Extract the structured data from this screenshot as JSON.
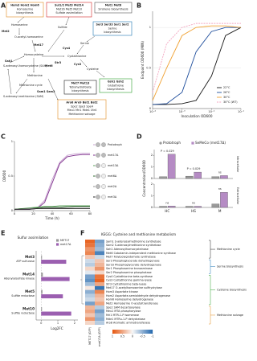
{
  "panel_labels": [
    "A",
    "B",
    "C",
    "D",
    "E",
    "F"
  ],
  "diagram": {
    "boxes": [
      {
        "lines": [
          "Hom3 Hom2 Hom6",
          "Homoserine",
          "biosynthesis"
        ],
        "color": "#e08a1e"
      },
      {
        "lines": [
          "Sul1/2 Met3 Met14",
          "Met16 Met5 Met10",
          "Sulfate assimilation"
        ],
        "color": "#d62728"
      },
      {
        "lines": [
          "Met1 Met8",
          "Sirohene biosynthesis"
        ],
        "color": "#555555"
      },
      {
        "lines": [
          "Ser3 Ser33 Ser1 Ser2",
          "Serine",
          "biosynthesis"
        ],
        "color": "#1f77b4"
      },
      {
        "lines": [
          "Gsh1 Gsh2",
          "Glutathione",
          "biosynthesis"
        ],
        "color": "#2ca02c"
      },
      {
        "lines": [
          "Met7 Met13",
          "Tetrahydrofolate",
          "biosynthesis"
        ],
        "color": "#222222"
      },
      {
        "lines": [
          "Aro8 Aro9 Bat1 Bat2",
          "Spe2 Spe3 Spe4",
          "Meu1 Mri1 Mde1 Utr4",
          "Methionine salvage"
        ],
        "color": "#e08a1e"
      }
    ],
    "labels": [
      "Homoserine",
      "O-acetyl-homoserine",
      "Met2",
      "Met17",
      "Sulfide",
      "Homocysteine",
      "Cystathionine",
      "Serine",
      "Cysteine",
      "Methionine",
      "Met6",
      "Methionine cycle",
      "S-adenosyl-methionine (SAM)",
      "S-adenosyl-homocysteine (SAH)",
      "Sah1",
      "Sam1 Sam2",
      "Cys4",
      "Cys3",
      "Str3"
    ]
  },
  "chart_data": [
    {
      "type": "line",
      "ylabel": "Endpoint OD600 (MIN)",
      "xlabel": "Inoculation OD600",
      "xscale": "log",
      "x": [
        0.0001,
        0.0003,
        0.001,
        0.003,
        0.01,
        0.03,
        0.1
      ],
      "xlim": [
        0.0001,
        0.1
      ],
      "xticks": [
        {
          "value": 0.0001,
          "label": "10⁻⁴"
        },
        {
          "value": 0.001,
          "label": "10⁻³"
        },
        {
          "value": 0.01,
          "label": "10⁻²"
        },
        {
          "value": 0.1,
          "label": "10⁻¹"
        }
      ],
      "ylim": [
        0,
        1.2
      ],
      "yticks": [
        0,
        0.5,
        1
      ],
      "grid": true,
      "legend": "lower right",
      "series": [
        {
          "name": "22°C",
          "color": "#1a1a1a",
          "values": [
            0.05,
            0.05,
            0.06,
            0.1,
            0.4,
            0.9,
            1.0
          ]
        },
        {
          "name": "26°C",
          "color": "#1f4e9c",
          "values": [
            0.05,
            0.06,
            0.2,
            0.7,
            0.95,
            1.0,
            1.0
          ]
        },
        {
          "name": "30°C",
          "color": "#f0a030",
          "values": [
            0.1,
            0.5,
            0.9,
            1.0,
            1.02,
            1.02,
            1.0
          ]
        },
        {
          "name": "30°C (WT)",
          "color": "#f4a6c0",
          "dashed": true,
          "values": [
            0.2,
            0.8,
            1.0,
            1.05,
            1.05,
            1.05,
            1.05
          ]
        }
      ]
    },
    {
      "type": "line",
      "ylabel": "OD600",
      "xlabel": "Time (h)",
      "x": [
        0,
        8,
        16,
        24,
        32,
        40,
        48,
        56,
        64,
        72,
        80
      ],
      "xlim": [
        0,
        80
      ],
      "xticks": [
        0,
        20,
        40,
        60,
        80
      ],
      "ylim": [
        0,
        1
      ],
      "yticks": [
        0,
        0.5,
        1
      ],
      "grid": false,
      "legend": "right",
      "series": [
        {
          "name": "Prototroph",
          "color": "#c7a0cf",
          "values": [
            0.02,
            0.02,
            0.02,
            0.04,
            0.15,
            0.45,
            0.7,
            0.8,
            0.82,
            0.83,
            0.83
          ]
        },
        {
          "name": "met17Δ",
          "color": "#7d2e8c",
          "values": [
            0.02,
            0.02,
            0.02,
            0.03,
            0.12,
            0.4,
            0.68,
            0.78,
            0.8,
            0.81,
            0.81
          ]
        },
        {
          "name": "met13Δ",
          "color": "#5aa05a",
          "values": [
            0.02,
            0.03,
            0.04,
            0.05,
            0.06,
            0.06,
            0.07,
            0.07,
            0.07,
            0.07,
            0.07
          ]
        },
        {
          "name": "met6Δ",
          "color": "#2e6b2e",
          "values": [
            0.02,
            0.03,
            0.03,
            0.04,
            0.05,
            0.05,
            0.05,
            0.06,
            0.06,
            0.06,
            0.06
          ]
        },
        {
          "name": "met2Δ",
          "color": "#8c8c8c",
          "values": [
            0.02,
            0.02,
            0.03,
            0.03,
            0.04,
            0.04,
            0.04,
            0.04,
            0.05,
            0.05,
            0.05
          ]
        },
        {
          "name": "met3Δ",
          "color": "#222222",
          "values": [
            0.02,
            0.02,
            0.02,
            0.03,
            0.03,
            0.03,
            0.03,
            0.03,
            0.03,
            0.03,
            0.03
          ]
        }
      ]
    },
    {
      "type": "bar",
      "ylabel": "Concentration/OD600",
      "facet": "Intracellular",
      "ylim": [
        0,
        2.5
      ],
      "yticks": [
        0,
        1,
        2
      ],
      "annotations": [
        "P = 0.029",
        "P = 0.029",
        "ns"
      ],
      "series": [
        {
          "name": "Prototroph",
          "color": "#9a9a9a",
          "values": [
            0.15,
            0.2,
            0.15
          ]
        },
        {
          "name": "SeMeCo (met17Δ)",
          "color": "#b58bc4",
          "values": [
            2.1,
            0.55,
            0.25
          ]
        }
      ]
    },
    {
      "type": "bar",
      "facet": "Extracellular",
      "categories": [
        "HC",
        "HS",
        "M"
      ],
      "ylim": [
        0,
        2
      ],
      "yticks": [
        0,
        1,
        2
      ],
      "annotations": [
        "ns",
        "ns",
        "ns"
      ],
      "series": [
        {
          "color": "#9a9a9a",
          "values": [
            0.1,
            0.1,
            0.3
          ]
        },
        {
          "color": "#b58bc4",
          "values": [
            0.12,
            0.1,
            1.3
          ]
        }
      ]
    },
    {
      "type": "bar",
      "horizontal": true,
      "title": "Sulfur assimilation",
      "xlabel": "Log2FC",
      "categories": [
        "Met3",
        "Met14",
        "Met5",
        "Met10"
      ],
      "subtitles": [
        "ATP sulfurase",
        "Adenylylsulfate kinase",
        "Sulfite reductase",
        "Sulfite reductase"
      ],
      "xlim": [
        -0.3,
        2.2
      ],
      "xticks": [
        0,
        1,
        2
      ],
      "series": [
        {
          "name": "MET17",
          "color": "#9a9a9a",
          "values": [
            0.05,
            0.1,
            0.08,
            0.05
          ]
        },
        {
          "name": "met17Δ",
          "color": "#9b5fb0",
          "values": [
            1.5,
            1.7,
            1.3,
            1.8
          ]
        }
      ]
    },
    {
      "type": "heatmap",
      "title": "KEGG: Cysteine and methionine metabolism",
      "columns": [
        "MET17 (GFP)",
        "met17Δ (GFP)"
      ],
      "rows": [
        "Sam1 S-adenosylmethionine synthetase",
        "Sam2 S-adenosylmethionine synthetase",
        "Sah1 Adenosylhomocysteinase",
        "Met6 Cobalamin-independent methionine synthase",
        "Met7 Folylpolyglutamate synthetase",
        "Ser3 Phosphoglycerate dehydrogenase",
        "Ser33 Phosphoglycerate dehydrogenase",
        "Ser1 Phosphoserine transaminase",
        "Ser2 Phosphoserine phosphatase",
        "Cys4 Cystathionine beta-synthase",
        "Cys3 Cystathionine gamma-lyase",
        "Str3 Cystathionine beta-lyase",
        "Met17 O-acetylhomoserine sulfhydrylase",
        "Hom3 Aspartate kinase",
        "Hom2 Aspartate-semialdehyde dehydrogenase",
        "Hom6 Homoserine dehydrogenase",
        "Met2 Homoserine O-acetyltransferase",
        "Spe2 SAM decarboxylase",
        "Meu1 MTA phosphorylase",
        "Mri1 MTR-1-P isomerase",
        "Mde1 MTRu-1-P dehydratase",
        "Aro8 Aromatic aminotransferase"
      ],
      "values": [
        [
          0.9,
          -0.6
        ],
        [
          0.8,
          -0.5
        ],
        [
          0.6,
          -0.4
        ],
        [
          0.7,
          -0.8
        ],
        [
          0.3,
          -0.2
        ],
        [
          -0.2,
          0.3
        ],
        [
          -0.3,
          0.4
        ],
        [
          0.2,
          0.6
        ],
        [
          -0.1,
          0.2
        ],
        [
          -0.6,
          0.8
        ],
        [
          -0.7,
          0.9
        ],
        [
          -0.4,
          0.5
        ],
        [
          0.1,
          -0.9
        ],
        [
          -0.5,
          0.7
        ],
        [
          -0.3,
          0.4
        ],
        [
          -0.2,
          0.3
        ],
        [
          -0.6,
          0.5
        ],
        [
          0.4,
          -0.3
        ],
        [
          0.5,
          -0.6
        ],
        [
          0.3,
          -0.4
        ],
        [
          0.6,
          -0.5
        ],
        [
          0.2,
          -0.3
        ]
      ],
      "groups": [
        "Methionine cycle",
        "Serine biosynthesis",
        "Cysteine biosynthesis",
        "Methionine salvage"
      ],
      "zlim": [
        -1,
        1
      ],
      "zticks": [
        1,
        0.5,
        0,
        -0.5,
        -1
      ],
      "colorscale": [
        "#2166ac",
        "#f7f7f7",
        "#e6550d"
      ]
    }
  ]
}
